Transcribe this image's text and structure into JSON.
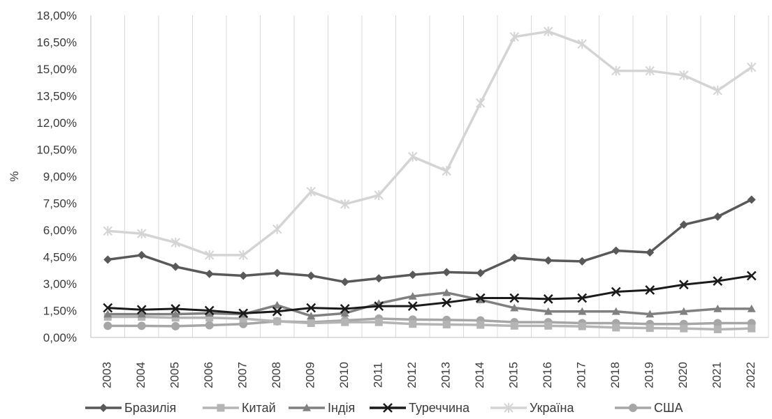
{
  "chart_data": {
    "type": "line",
    "title": "",
    "xlabel": "",
    "ylabel": "%",
    "ylim": [
      0,
      18
    ],
    "yticks": [
      "0,00%",
      "1,50%",
      "3,00%",
      "4,50%",
      "6,00%",
      "7,50%",
      "9,00%",
      "10,50%",
      "12,00%",
      "13,50%",
      "15,00%",
      "16,50%",
      "18,00%"
    ],
    "categories": [
      "2003",
      "2004",
      "2005",
      "2006",
      "2007",
      "2008",
      "2009",
      "2010",
      "2011",
      "2012",
      "2013",
      "2014",
      "2015",
      "2016",
      "2017",
      "2018",
      "2019",
      "2020",
      "2021",
      "2022"
    ],
    "grid": "vertical",
    "legend_position": "bottom",
    "series": [
      {
        "name": "Бразилія",
        "color": "#595959",
        "marker": "diamond",
        "values": [
          4.35,
          4.6,
          3.95,
          3.55,
          3.45,
          3.6,
          3.45,
          3.1,
          3.3,
          3.5,
          3.65,
          3.6,
          4.45,
          4.3,
          4.25,
          4.85,
          4.75,
          6.3,
          6.75,
          7.7
        ]
      },
      {
        "name": "Китай",
        "color": "#b4b4b4",
        "marker": "square",
        "values": [
          1.15,
          1.15,
          1.1,
          1.1,
          1.05,
          0.9,
          0.8,
          0.85,
          0.85,
          0.75,
          0.72,
          0.7,
          0.65,
          0.65,
          0.62,
          0.55,
          0.52,
          0.5,
          0.45,
          0.5
        ]
      },
      {
        "name": "Індія",
        "color": "#808080",
        "marker": "triangle",
        "values": [
          1.3,
          1.3,
          1.3,
          1.35,
          1.3,
          1.8,
          1.2,
          1.35,
          1.9,
          2.3,
          2.5,
          2.1,
          1.65,
          1.45,
          1.45,
          1.45,
          1.3,
          1.45,
          1.6,
          1.6
        ]
      },
      {
        "name": "Туреччина",
        "color": "#1a1a1a",
        "marker": "x",
        "values": [
          1.65,
          1.55,
          1.6,
          1.5,
          1.35,
          1.45,
          1.65,
          1.6,
          1.75,
          1.75,
          1.95,
          2.2,
          2.2,
          2.15,
          2.2,
          2.55,
          2.65,
          2.95,
          3.15,
          3.45
        ]
      },
      {
        "name": "Україна",
        "color": "#d4d4d4",
        "marker": "star",
        "values": [
          5.95,
          5.8,
          5.3,
          4.6,
          4.6,
          6.05,
          8.15,
          7.45,
          7.95,
          10.1,
          9.3,
          13.1,
          16.8,
          17.1,
          16.4,
          14.9,
          14.9,
          14.65,
          13.8,
          15.1
        ]
      },
      {
        "name": "США",
        "color": "#a6a6a6",
        "marker": "circle",
        "values": [
          0.65,
          0.65,
          0.63,
          0.68,
          0.75,
          0.9,
          0.85,
          0.95,
          1.05,
          1.0,
          0.98,
          0.95,
          0.85,
          0.85,
          0.8,
          0.8,
          0.75,
          0.75,
          0.8,
          0.8
        ]
      }
    ]
  }
}
